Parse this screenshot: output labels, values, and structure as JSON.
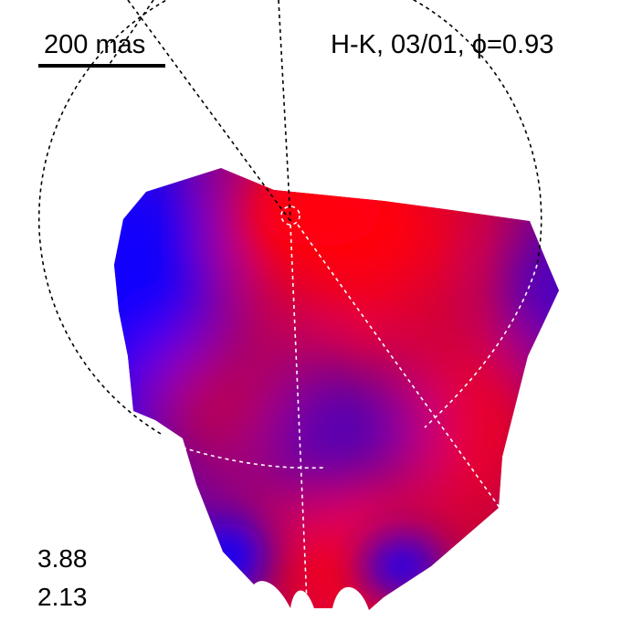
{
  "scale": {
    "label": "200 mas"
  },
  "title": {
    "text": "H-K, 03/01, ϕ=0.93"
  },
  "values": {
    "top": "3.88",
    "bottom": "2.13"
  },
  "colors": {
    "background": "#ffffff",
    "red": "#ff0010",
    "blue": "#1000ff",
    "purple": "#6a00a8",
    "dashed_lines": "#000000",
    "dashed_lines_inner": "#ffffff"
  }
}
